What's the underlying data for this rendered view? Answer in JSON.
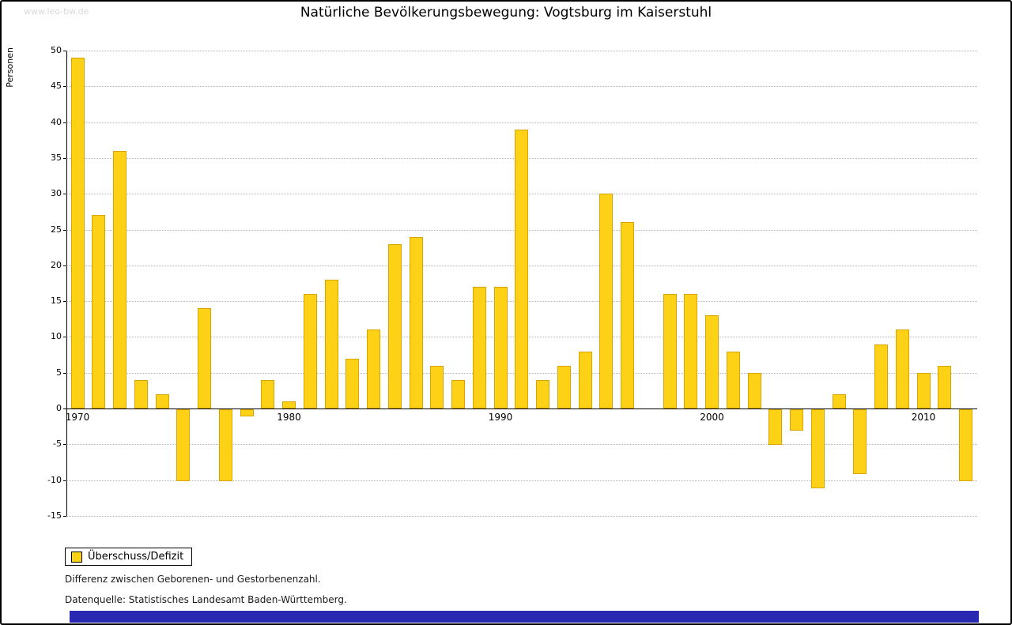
{
  "watermark": "www.leo-bw.de",
  "title": "Natürliche Bevölkerungsbewegung: Vogtsburg im Kaiserstuhl",
  "legend": {
    "label": "Überschuss/Defizit"
  },
  "footnotes": [
    "Differenz zwischen Geborenen- und Gestorbenenzahl.",
    "Datenquelle: Statistisches Landesamt Baden-Württemberg."
  ],
  "colors": {
    "bar": "#FCD116",
    "bar_border": "#D9A400",
    "footer": "#2828B0",
    "grid": "#B3B3B3"
  },
  "chart_data": {
    "type": "bar",
    "title": "Natürliche Bevölkerungsbewegung: Vogtsburg im Kaiserstuhl",
    "xlabel": "",
    "ylabel": "Personen",
    "ylim": [
      -15,
      50
    ],
    "ytick_step": 5,
    "grid": "horizontal dotted",
    "legend_position": "bottom-left",
    "legend_entries": [
      "Überschuss/Defizit"
    ],
    "xticks": [
      1970,
      1980,
      1990,
      2000,
      2010
    ],
    "years": [
      1970,
      1971,
      1972,
      1973,
      1974,
      1975,
      1976,
      1977,
      1978,
      1979,
      1980,
      1981,
      1982,
      1983,
      1984,
      1985,
      1986,
      1987,
      1988,
      1989,
      1990,
      1991,
      1992,
      1993,
      1994,
      1995,
      1996,
      1997,
      1998,
      1999,
      2000,
      2001,
      2002,
      2003,
      2004,
      2005,
      2006,
      2007,
      2008,
      2009,
      2010,
      2011,
      2012
    ],
    "values": [
      49,
      27,
      36,
      4,
      2,
      -10,
      14,
      -10,
      -1,
      4,
      1,
      16,
      18,
      7,
      11,
      23,
      24,
      6,
      4,
      17,
      17,
      39,
      4,
      6,
      8,
      30,
      26,
      0,
      16,
      16,
      13,
      8,
      5,
      -5,
      -3,
      -11,
      2,
      -9,
      9,
      11,
      5,
      6,
      -10
    ]
  }
}
